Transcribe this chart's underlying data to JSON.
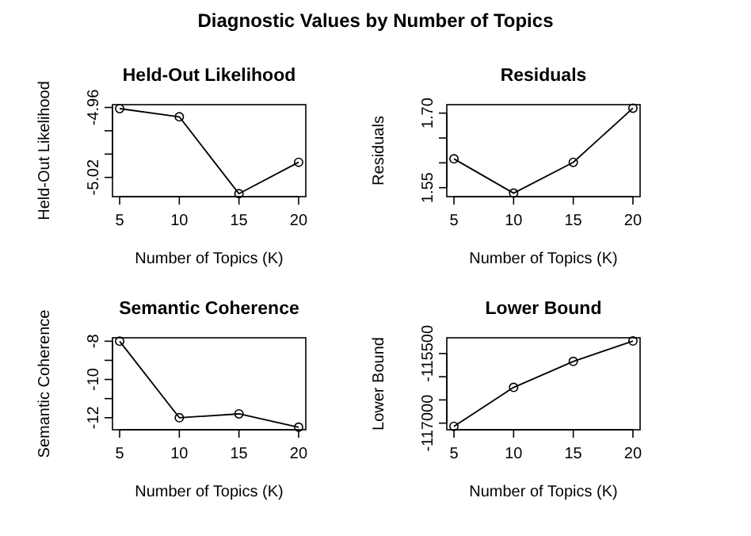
{
  "chart_data": [
    {
      "type": "line",
      "title": "Held-Out Likelihood",
      "xlabel": "Number of Topics (K)",
      "ylabel": "Held-Out Likelihood",
      "annotations": [
        "Diagnostic Values by Number of Topics"
      ],
      "x": [
        5,
        10,
        15,
        20
      ],
      "series": [
        {
          "color": "#000000",
          "values": [
            -4.961,
            -4.968,
            -5.034,
            -5.007
          ]
        }
      ],
      "xlim": [
        4.4,
        20.6
      ],
      "xticks": [
        5,
        10,
        15,
        20
      ],
      "ylim": [
        -5.0365,
        -4.9576
      ],
      "yticks": [
        {
          "value": -5.02,
          "label": "-5.02"
        },
        {
          "value": -5.0,
          "label": null
        },
        {
          "value": -4.98,
          "label": null
        },
        {
          "value": -4.96,
          "label": "-4.96"
        }
      ],
      "marker": "circle",
      "line_style": "solid",
      "grid": false
    },
    {
      "type": "line",
      "title": "Residuals",
      "xlabel": "Number of Topics (K)",
      "ylabel": "Residuals",
      "x": [
        5,
        10,
        15,
        20
      ],
      "series": [
        {
          "color": "#000000",
          "values": [
            1.608,
            1.539,
            1.601,
            1.71
          ]
        }
      ],
      "xlim": [
        4.4,
        20.6
      ],
      "xticks": [
        5,
        10,
        15,
        20
      ],
      "ylim": [
        1.532,
        1.717
      ],
      "yticks": [
        {
          "value": 1.55,
          "label": "1.55"
        },
        {
          "value": 1.6,
          "label": null
        },
        {
          "value": 1.65,
          "label": null
        },
        {
          "value": 1.7,
          "label": "1.70"
        }
      ],
      "marker": "circle",
      "line_style": "solid",
      "grid": false
    },
    {
      "type": "line",
      "title": "Semantic Coherence",
      "xlabel": "Number of Topics (K)",
      "ylabel": "Semantic Coherence",
      "x": [
        5,
        10,
        15,
        20
      ],
      "series": [
        {
          "color": "#000000",
          "values": [
            -8.0,
            -12.0,
            -11.8,
            -12.5
          ]
        }
      ],
      "xlim": [
        4.4,
        20.6
      ],
      "xticks": [
        5,
        10,
        15,
        20
      ],
      "ylim": [
        -12.63,
        -7.82
      ],
      "yticks": [
        -12,
        {
          "value": -11,
          "label": null
        },
        -10,
        {
          "value": -9,
          "label": null
        },
        -8
      ],
      "marker": "circle",
      "line_style": "solid",
      "grid": false
    },
    {
      "type": "line",
      "title": "Lower Bound",
      "xlabel": "Number of Topics (K)",
      "ylabel": "Lower Bound",
      "x": [
        5,
        10,
        15,
        20
      ],
      "series": [
        {
          "color": "#000000",
          "values": [
            -117070,
            -116230,
            -115670,
            -115230
          ]
        }
      ],
      "xlim": [
        4.4,
        20.6
      ],
      "xticks": [
        5,
        10,
        15,
        20
      ],
      "ylim": [
        -117143,
        -115160
      ],
      "yticks": [
        -117000,
        {
          "value": -116500,
          "label": null
        },
        {
          "value": -116000,
          "label": null
        },
        -115500
      ],
      "marker": "circle",
      "line_style": "solid",
      "grid": false
    }
  ]
}
